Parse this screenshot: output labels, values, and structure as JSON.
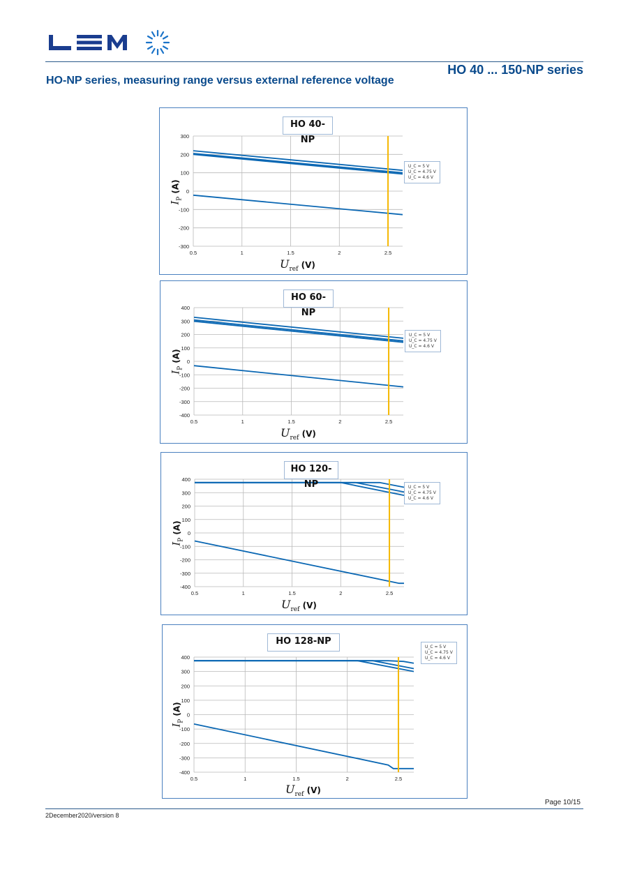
{
  "header": {
    "logo_text": "LEM",
    "series_title": "HO 40 ... 150-NP series",
    "page_heading": "HO-NP series, measuring range versus external reference voltage"
  },
  "footer": {
    "page_number": "Page 10/15",
    "version": "2December2020/version 8"
  },
  "colors": {
    "line": "#0a67b3",
    "marker": "#f5b800",
    "grid": "#b9b9b9",
    "brand": "#0a4a8c"
  },
  "chart_data": [
    {
      "type": "line",
      "title": "HO 40-NP",
      "ylabel_main": "I",
      "ylabel_sub": "P",
      "ylabel_unit": "(A)",
      "xlabel_main": "U",
      "xlabel_sub": "ref",
      "xlabel_unit": "(V)",
      "xlim": [
        0.5,
        2.65
      ],
      "ylim": [
        -300,
        300
      ],
      "x_ticks": [
        "0.5",
        "1",
        "1.5",
        "2",
        "2.5"
      ],
      "x_tick_values": [
        0.5,
        1,
        1.5,
        2,
        2.5
      ],
      "y_ticks": [
        "300",
        "200",
        "100",
        "0",
        "-100",
        "-200",
        "-300"
      ],
      "y_tick_values": [
        300,
        200,
        100,
        0,
        -100,
        -200,
        -300
      ],
      "marker_x": 2.5,
      "legend": [
        "U_C = 5 V",
        "U_C = 4.75 V",
        "U_C = 4.6 V"
      ],
      "series": [
        {
          "x": [
            0.5,
            2.65
          ],
          "y": [
            220,
            113
          ]
        },
        {
          "x": [
            0.5,
            2.65
          ],
          "y": [
            205,
            100
          ]
        },
        {
          "x": [
            0.5,
            2.65
          ],
          "y": [
            200,
            93
          ]
        },
        {
          "x": [
            0.5,
            2.65
          ],
          "y": [
            -22,
            -128
          ]
        }
      ]
    },
    {
      "type": "line",
      "title": "HO 60-NP",
      "ylabel_main": "I",
      "ylabel_sub": "P",
      "ylabel_unit": "(A)",
      "xlabel_main": "U",
      "xlabel_sub": "ref",
      "xlabel_unit": "(V)",
      "xlim": [
        0.5,
        2.65
      ],
      "ylim": [
        -400,
        400
      ],
      "x_ticks": [
        "0.5",
        "1",
        "1.5",
        "2",
        "2.5"
      ],
      "x_tick_values": [
        0.5,
        1,
        1.5,
        2,
        2.5
      ],
      "y_ticks": [
        "400",
        "300",
        "200",
        "100",
        "0",
        "-100",
        "-200",
        "-300",
        "-400"
      ],
      "y_tick_values": [
        400,
        300,
        200,
        100,
        0,
        -100,
        -200,
        -300,
        -400
      ],
      "marker_x": 2.5,
      "legend": [
        "U_C = 5 V",
        "U_C = 4.75 V",
        "U_C = 4.6 V"
      ],
      "series": [
        {
          "x": [
            0.5,
            2.65
          ],
          "y": [
            328,
            172
          ]
        },
        {
          "x": [
            0.5,
            2.65
          ],
          "y": [
            308,
            152
          ]
        },
        {
          "x": [
            0.5,
            2.65
          ],
          "y": [
            298,
            142
          ]
        },
        {
          "x": [
            0.5,
            2.65
          ],
          "y": [
            -32,
            -190
          ]
        }
      ]
    },
    {
      "type": "line",
      "title": "HO 120-NP",
      "ylabel_main": "I",
      "ylabel_sub": "P",
      "ylabel_unit": "(A)",
      "xlabel_main": "U",
      "xlabel_sub": "ref",
      "xlabel_unit": "(V)",
      "xlim": [
        0.5,
        2.65
      ],
      "ylim": [
        -400,
        400
      ],
      "x_ticks": [
        "0.5",
        "1",
        "1.5",
        "2",
        "2.5"
      ],
      "x_tick_values": [
        0.5,
        1,
        1.5,
        2,
        2.5
      ],
      "y_ticks": [
        "400",
        "300",
        "200",
        "100",
        "0",
        "-100",
        "-200",
        "-300",
        "-400"
      ],
      "y_tick_values": [
        400,
        300,
        200,
        100,
        0,
        -100,
        -200,
        -300,
        -400
      ],
      "marker_x": 2.5,
      "legend": [
        "U_C = 5 V",
        "U_C = 4.75 V",
        "U_C = 4.6 V"
      ],
      "series": [
        {
          "x": [
            0.5,
            2.4,
            2.65
          ],
          "y": [
            375,
            375,
            340
          ]
        },
        {
          "x": [
            0.5,
            2.15,
            2.65
          ],
          "y": [
            375,
            375,
            305
          ]
        },
        {
          "x": [
            0.5,
            2.0,
            2.65
          ],
          "y": [
            375,
            375,
            280
          ]
        },
        {
          "x": [
            0.5,
            2.6,
            2.65
          ],
          "y": [
            -60,
            -375,
            -375
          ]
        }
      ]
    },
    {
      "type": "line",
      "title": "HO 128-NP",
      "ylabel_main": "I",
      "ylabel_sub": "P",
      "ylabel_unit": "(A)",
      "xlabel_main": "U",
      "xlabel_sub": "ref",
      "xlabel_unit": "(V)",
      "xlim": [
        0.5,
        2.65
      ],
      "ylim": [
        -400,
        400
      ],
      "x_ticks": [
        "0.5",
        "1",
        "1.5",
        "2",
        "2.5"
      ],
      "x_tick_values": [
        0.5,
        1,
        1.5,
        2,
        2.5
      ],
      "y_ticks": [
        "400",
        "300",
        "200",
        "100",
        "0",
        "-100",
        "-200",
        "-300",
        "-400"
      ],
      "y_tick_values": [
        400,
        300,
        200,
        100,
        0,
        -100,
        -200,
        -300,
        -400
      ],
      "marker_x": 2.5,
      "legend": [
        "U_C = 5 V",
        "U_C = 4.75 V",
        "U_C = 4.6 V"
      ],
      "series": [
        {
          "x": [
            0.5,
            2.4,
            2.55,
            2.65
          ],
          "y": [
            375,
            375,
            370,
            358
          ]
        },
        {
          "x": [
            0.5,
            2.25,
            2.65
          ],
          "y": [
            375,
            375,
            320
          ]
        },
        {
          "x": [
            0.5,
            2.1,
            2.65
          ],
          "y": [
            375,
            375,
            300
          ]
        },
        {
          "x": [
            0.5,
            2.4,
            2.45,
            2.65
          ],
          "y": [
            -65,
            -350,
            -375,
            -375
          ]
        }
      ]
    }
  ]
}
